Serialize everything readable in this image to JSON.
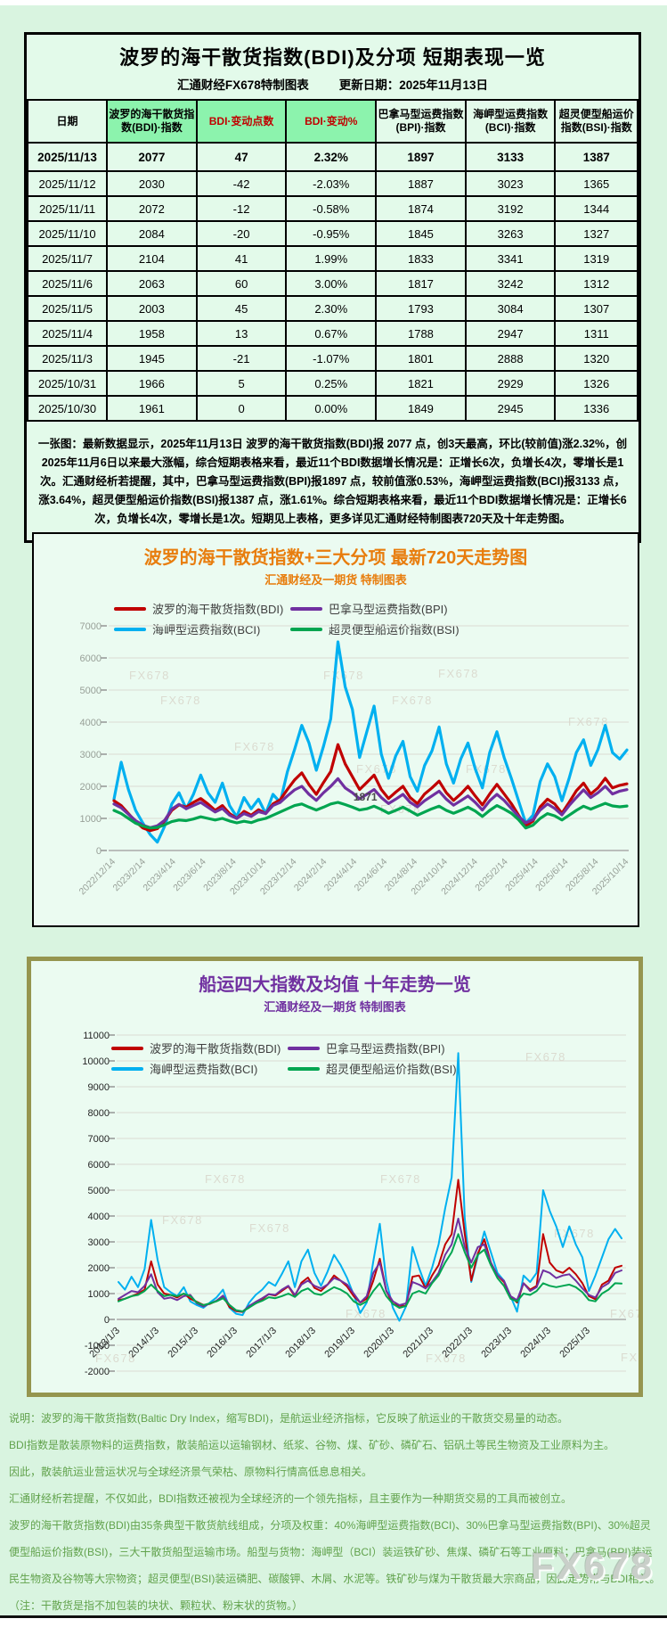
{
  "page": {
    "watermark": "FX678"
  },
  "table_panel": {
    "title": "波罗的海干散货指数(BDI)及分项 短期表现一览",
    "source_label": "汇通财经FX678特制图表",
    "update_label": "更新日期：2025年11月13日",
    "columns": [
      "日期",
      "波罗的海干散货指数(BDI)·指数",
      "BDI·变动点数",
      "BDI·变动%",
      "巴拿马型运费指数(BPI)·指数",
      "海岬型运费指数(BCI)·指数",
      "超灵便型船运价指数(BSI)·指数"
    ],
    "rows": [
      [
        "2025/11/13",
        "2077",
        "47",
        "2.32%",
        "1897",
        "3133",
        "1387"
      ],
      [
        "2025/11/12",
        "2030",
        "-42",
        "-2.03%",
        "1887",
        "3023",
        "1365"
      ],
      [
        "2025/11/11",
        "2072",
        "-12",
        "-0.58%",
        "1874",
        "3192",
        "1344"
      ],
      [
        "2025/11/10",
        "2084",
        "-20",
        "-0.95%",
        "1845",
        "3263",
        "1327"
      ],
      [
        "2025/11/7",
        "2104",
        "41",
        "1.99%",
        "1833",
        "3341",
        "1319"
      ],
      [
        "2025/11/6",
        "2063",
        "60",
        "3.00%",
        "1817",
        "3242",
        "1312"
      ],
      [
        "2025/11/5",
        "2003",
        "45",
        "2.30%",
        "1793",
        "3084",
        "1307"
      ],
      [
        "2025/11/4",
        "1958",
        "13",
        "0.67%",
        "1788",
        "2947",
        "1311"
      ],
      [
        "2025/11/3",
        "1945",
        "-21",
        "-1.07%",
        "1801",
        "2888",
        "1320"
      ],
      [
        "2025/10/31",
        "1966",
        "5",
        "0.25%",
        "1821",
        "2929",
        "1326"
      ],
      [
        "2025/10/30",
        "1961",
        "0",
        "0.00%",
        "1849",
        "2945",
        "1336"
      ]
    ],
    "summary": "一张图：最新数据显示，2025年11月13日 波罗的海干散货指数(BDI)报 2077 点，创3天最高，环比(较前值)涨2.32%，创2025年11月6日以来最大涨幅，综合短期表格来看，最近11个BDI数据增长情况是：正增长6次，负增长4次，零增长是1次。汇通财经析若提醒，其中，巴拿马型运费指数(BPI)报1897 点，较前值涨0.53%，海岬型运费指数(BCI)报3133 点，涨3.64%，超灵便型船运价指数(BSI)报1387 点，涨1.61%。综合短期表格来看，最近11个BDI数据增长情况是：正增长6次，负增长4次，零增长是1次。短期见上表格，更多详见汇通财经特制图表720天及十年走势图。"
  },
  "chart_data": [
    {
      "id": "chart1",
      "type": "line",
      "title": "波罗的海干散货指数+三大分项  最新720天走势图",
      "subtitle": "汇通财经及一期货 特制图表",
      "title_color": "#E87D0D",
      "ylim": [
        0,
        7000
      ],
      "ytick_step": 1000,
      "grid": true,
      "legend_position": "top",
      "watermark": "FX678",
      "annotation": {
        "text": "1871",
        "xfrac": 0.49,
        "value": 1560
      },
      "x_ticks": [
        "2022/12/14",
        "2023/2/14",
        "2023/4/14",
        "2023/6/14",
        "2023/8/14",
        "2023/10/14",
        "2023/12/14",
        "2024/2/14",
        "2024/4/14",
        "2024/6/14",
        "2024/8/14",
        "2024/10/14",
        "2024/12/14",
        "2025/2/14",
        "2025/4/14",
        "2025/6/14",
        "2025/8/14",
        "2025/10/14"
      ],
      "series": [
        {
          "name": "波罗的海干散货指数(BDI)",
          "color": "#C00000",
          "values": [
            1550,
            1400,
            1150,
            900,
            700,
            620,
            680,
            920,
            1250,
            1420,
            1350,
            1500,
            1620,
            1450,
            1250,
            1400,
            1150,
            1000,
            1220,
            1100,
            1270,
            1150,
            1450,
            1580,
            1900,
            2200,
            2420,
            2050,
            1750,
            2120,
            2460,
            3300,
            2700,
            2300,
            1900,
            2120,
            2350,
            1900,
            1620,
            1820,
            2000,
            1650,
            1460,
            1760,
            1950,
            2160,
            1800,
            1560,
            1760,
            2000,
            1700,
            1420,
            1760,
            2060,
            1760,
            1460,
            1100,
            760,
            920,
            1360,
            1600,
            1450,
            1160,
            1500,
            1860,
            2100,
            1760,
            1950,
            2250,
            1950,
            2030,
            2077
          ]
        },
        {
          "name": "巴拿马型运费指数(BPI)",
          "color": "#7030A0",
          "values": [
            1450,
            1330,
            1130,
            930,
            790,
            710,
            770,
            940,
            1290,
            1440,
            1300,
            1400,
            1500,
            1350,
            1200,
            1310,
            1100,
            1000,
            1150,
            1060,
            1210,
            1150,
            1400,
            1500,
            1700,
            1890,
            2000,
            1750,
            1560,
            1800,
            2000,
            2240,
            1950,
            1800,
            1610,
            1750,
            1900,
            1650,
            1460,
            1600,
            1750,
            1500,
            1360,
            1550,
            1700,
            1850,
            1600,
            1410,
            1550,
            1700,
            1500,
            1260,
            1550,
            1750,
            1560,
            1310,
            1060,
            860,
            960,
            1260,
            1450,
            1310,
            1110,
            1400,
            1650,
            1890,
            1650,
            1800,
            2000,
            1760,
            1850,
            1897
          ]
        },
        {
          "name": "海岬型运费指数(BCI)",
          "color": "#00B0F0",
          "values": [
            1600,
            2750,
            1900,
            1250,
            850,
            500,
            260,
            750,
            1450,
            1800,
            1300,
            1750,
            2350,
            1800,
            1500,
            2100,
            1400,
            1050,
            1650,
            1300,
            1600,
            1150,
            1750,
            1500,
            2450,
            3150,
            3900,
            3350,
            2500,
            3250,
            4100,
            6500,
            5100,
            4400,
            2900,
            3700,
            4500,
            3000,
            2250,
            2950,
            3400,
            2300,
            1850,
            2650,
            3100,
            3850,
            2700,
            2100,
            2850,
            3350,
            2550,
            1950,
            3050,
            3700,
            2900,
            2250,
            1550,
            850,
            1100,
            2150,
            2700,
            2300,
            1550,
            2250,
            3050,
            3450,
            2650,
            3150,
            3900,
            3050,
            2850,
            3133
          ]
        },
        {
          "name": "超灵便型船运价指数(BSI)",
          "color": "#00A550",
          "values": [
            1250,
            1150,
            1000,
            850,
            760,
            700,
            720,
            800,
            900,
            950,
            930,
            980,
            1050,
            1000,
            950,
            1000,
            920,
            860,
            910,
            870,
            950,
            1000,
            1100,
            1200,
            1300,
            1400,
            1450,
            1350,
            1260,
            1350,
            1450,
            1500,
            1430,
            1350,
            1260,
            1300,
            1380,
            1280,
            1160,
            1250,
            1350,
            1230,
            1100,
            1200,
            1300,
            1380,
            1250,
            1160,
            1250,
            1350,
            1230,
            1060,
            1250,
            1400,
            1290,
            1160,
            960,
            700,
            790,
            1000,
            1150,
            1080,
            950,
            1100,
            1250,
            1380,
            1290,
            1380,
            1470,
            1390,
            1360,
            1387
          ]
        }
      ]
    },
    {
      "id": "chart2",
      "type": "line",
      "title": "船运四大指数及均值 十年走势一览",
      "subtitle": "汇通财经及一期货 特制图表",
      "title_color": "#7030A0",
      "ylim": [
        -2000,
        11000
      ],
      "ytick_step": 1000,
      "grid": true,
      "legend_position": "top",
      "watermark": "FX678",
      "x_ticks": [
        "2013/1/3",
        "2014/1/3",
        "2015/1/3",
        "2016/1/3",
        "2017/1/3",
        "2018/1/3",
        "2019/1/3",
        "2020/1/3",
        "2021/1/3",
        "2022/1/3",
        "2023/1/3",
        "2024/1/3",
        "2025/1/3"
      ],
      "series": [
        {
          "name": "波罗的海干散货指数(BDI)",
          "color": "#C00000",
          "values": [
            750,
            800,
            900,
            1000,
            1150,
            2250,
            1350,
            1000,
            950,
            850,
            1000,
            800,
            680,
            560,
            600,
            720,
            900,
            480,
            320,
            290,
            480,
            620,
            780,
            980,
            920,
            1100,
            1280,
            900,
            1420,
            1620,
            1220,
            1100,
            1350,
            1700,
            1500,
            1270,
            900,
            650,
            800,
            1500,
            2350,
            1100,
            600,
            530,
            520,
            1650,
            1700,
            1200,
            1700,
            2100,
            2900,
            3300,
            5400,
            3300,
            1500,
            2550,
            3100,
            2200,
            1700,
            1450,
            900,
            650,
            1400,
            1150,
            1300,
            3300,
            2200,
            1900,
            1800,
            2000,
            1750,
            1400,
            900,
            780,
            1350,
            1500,
            2000,
            2077
          ]
        },
        {
          "name": "巴拿马型运费指数(BPI)",
          "color": "#7030A0",
          "values": [
            800,
            950,
            1100,
            1050,
            1300,
            1750,
            1050,
            800,
            850,
            750,
            900,
            950,
            620,
            500,
            620,
            720,
            920,
            560,
            350,
            300,
            520,
            680,
            820,
            980,
            950,
            1150,
            1300,
            950,
            1350,
            1500,
            1300,
            1200,
            1350,
            1600,
            1500,
            1350,
            1000,
            650,
            900,
            1800,
            2200,
            1100,
            700,
            550,
            620,
            1450,
            1350,
            1200,
            1450,
            1800,
            2500,
            2900,
            3900,
            2800,
            2200,
            2800,
            2900,
            2200,
            1700,
            1500,
            900,
            750,
            1400,
            1100,
            1250,
            1900,
            1800,
            1600,
            1700,
            1750,
            1500,
            1200,
            950,
            850,
            1250,
            1400,
            1800,
            1897
          ]
        },
        {
          "name": "海岬型运费指数(BCI)",
          "color": "#00B0F0",
          "values": [
            1450,
            1150,
            1650,
            1250,
            1950,
            3850,
            2300,
            1250,
            1050,
            900,
            1250,
            700,
            550,
            450,
            650,
            850,
            1150,
            450,
            220,
            170,
            650,
            950,
            1150,
            1450,
            1300,
            1750,
            2250,
            1250,
            2250,
            2700,
            1800,
            1300,
            1850,
            2500,
            2100,
            1600,
            950,
            250,
            650,
            2250,
            3700,
            1500,
            450,
            -50,
            500,
            2800,
            2000,
            1300,
            2000,
            2900,
            4300,
            5500,
            10300,
            3900,
            1450,
            2450,
            3400,
            2600,
            1800,
            1500,
            900,
            300,
            1700,
            1450,
            1800,
            5000,
            4200,
            3600,
            2800,
            3600,
            2900,
            2400,
            1100,
            1700,
            2400,
            3100,
            3500,
            3133
          ]
        },
        {
          "name": "超灵便型船运价指数(BSI)",
          "color": "#00A550",
          "values": [
            700,
            800,
            900,
            950,
            1100,
            1350,
            1100,
            900,
            950,
            900,
            1000,
            900,
            650,
            550,
            620,
            700,
            820,
            560,
            360,
            310,
            460,
            620,
            720,
            860,
            820,
            900,
            1000,
            870,
            1100,
            1200,
            1000,
            950,
            1100,
            1250,
            1150,
            1000,
            700,
            560,
            700,
            1100,
            1400,
            900,
            600,
            450,
            520,
            1000,
            1100,
            1000,
            1400,
            1700,
            2200,
            2600,
            3300,
            2600,
            2000,
            2500,
            2700,
            2100,
            1600,
            1300,
            800,
            700,
            1000,
            950,
            1100,
            1400,
            1300,
            1250,
            1300,
            1350,
            1250,
            1050,
            750,
            700,
            1000,
            1150,
            1400,
            1387
          ]
        }
      ]
    }
  ],
  "footnote": {
    "lines": [
      "说明：波罗的海干散货指数(Baltic Dry Index，缩写BDI)，是航运业经济指标，它反映了航运业的干散货交易量的动态。",
      "BDI指数是散装原物料的运费指数，散装船运以运输钢材、纸浆、谷物、煤、矿砂、磷矿石、铝矾土等民生物资及工业原料为主。",
      "因此，散装航运业营运状况与全球经济景气荣枯、原物料行情高低息息相关。",
      "汇通财经析若提醒，不仅如此，BDI指数还被视为全球经济的一个领先指标，且主要作为一种期货交易的工具而被创立。",
      "波罗的海干散货指数(BDI)由35条典型干散货航线组成，分项及权重：40%海岬型运费指数(BCI)、30%巴拿马型运费指数(BPI)、30%超灵便型船运价指数(BSI)，三大干散货船型运输市场。船型与货物：海岬型（BCI）装运铁矿砂、焦煤、磷矿石等工业原料；巴拿马(BPI)装运民生物资及谷物等大宗物资；超灵便型(BSI)装运磷肥、碳酸钾、木屑、水泥等。铁矿砂与煤为干散货最大宗商品，因此走势常与BDI相关。（注：干散货是指不加包装的块状、颗粒状、粉末状的货物。）"
    ]
  }
}
